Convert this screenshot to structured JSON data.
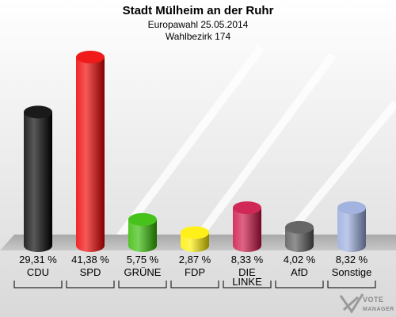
{
  "chart_data": {
    "type": "bar",
    "title": "Stadt Mülheim an der Ruhr",
    "subtitle": "Europawahl 25.05.2014",
    "subtitle2": "Wahlbezirk 174",
    "categories": [
      [
        "CDU"
      ],
      [
        "SPD"
      ],
      [
        "GRÜNE"
      ],
      [
        "FDP"
      ],
      [
        "DIE",
        "LINKE"
      ],
      [
        "AfD"
      ],
      [
        "Sonstige"
      ]
    ],
    "values": [
      29.31,
      41.38,
      5.75,
      2.87,
      8.33,
      4.02,
      8.32
    ],
    "value_labels": [
      "29,31 %",
      "41,38 %",
      "5,75 %",
      "2,87 %",
      "8,33 %",
      "4,02 %",
      "8,32 %"
    ],
    "colors": [
      "#000000",
      "#ee0000",
      "#33bb00",
      "#ffee00",
      "#cc1144",
      "#555555",
      "#99aadd"
    ]
  },
  "logo": {
    "line1": "VOTE",
    "line2": "MANAGER"
  }
}
